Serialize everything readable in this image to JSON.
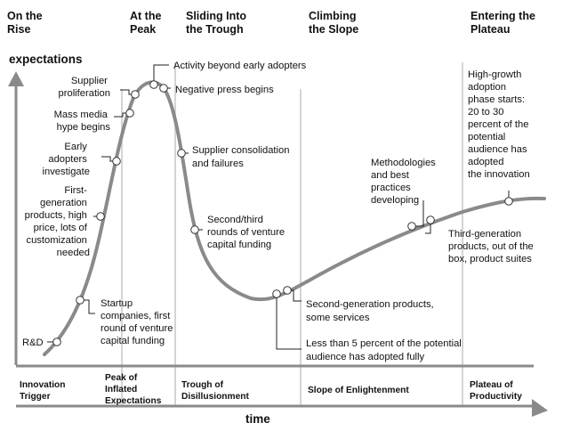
{
  "phase_headings": [
    [
      "On the",
      "Rise"
    ],
    [
      "At the",
      "Peak"
    ],
    [
      "Sliding Into",
      "the Trough"
    ],
    [
      "Climbing",
      "the Slope"
    ],
    [
      "Entering the",
      "Plateau"
    ]
  ],
  "y_axis_label": "expectations",
  "x_axis_label": "time",
  "events": [
    {
      "text": [
        "R&D"
      ]
    },
    {
      "text": [
        "Startup",
        "companies, first",
        "round of venture",
        "capital funding"
      ]
    },
    {
      "text": [
        "First-",
        "generation",
        "products, high",
        "price, lots of",
        "customization",
        "needed"
      ]
    },
    {
      "text": [
        "Early",
        "adopters",
        "investigate"
      ]
    },
    {
      "text": [
        "Mass media",
        "hype begins"
      ]
    },
    {
      "text": [
        "Supplier",
        "proliferation"
      ]
    },
    {
      "text": [
        "Activity beyond early adopters"
      ]
    },
    {
      "text": [
        "Negative press begins"
      ]
    },
    {
      "text": [
        "Supplier consolidation",
        "and failures"
      ]
    },
    {
      "text": [
        "Second/third",
        "rounds of venture",
        "capital funding"
      ]
    },
    {
      "text": [
        "Less than 5 percent of the potential",
        "audience has adopted fully"
      ]
    },
    {
      "text": [
        "Second-generation products,",
        "some services"
      ]
    },
    {
      "text": [
        "Methodologies",
        "and best",
        "practices",
        "developing"
      ]
    },
    {
      "text": [
        "Third-generation",
        "products, out of the",
        "box, product suites"
      ]
    },
    {
      "text": [
        "High-growth",
        "adoption",
        "phase starts:",
        "20 to 30",
        "percent of the",
        "potential",
        "audience has",
        "adopted",
        "the innovation"
      ]
    }
  ],
  "stages": [
    [
      "Innovation",
      "Trigger"
    ],
    [
      "Peak of",
      "Inflated",
      "Expectations"
    ],
    [
      "Trough of",
      "Disillusionment"
    ],
    [
      "Slope of Enlightenment"
    ],
    [
      "Plateau of",
      "Productivity"
    ]
  ]
}
